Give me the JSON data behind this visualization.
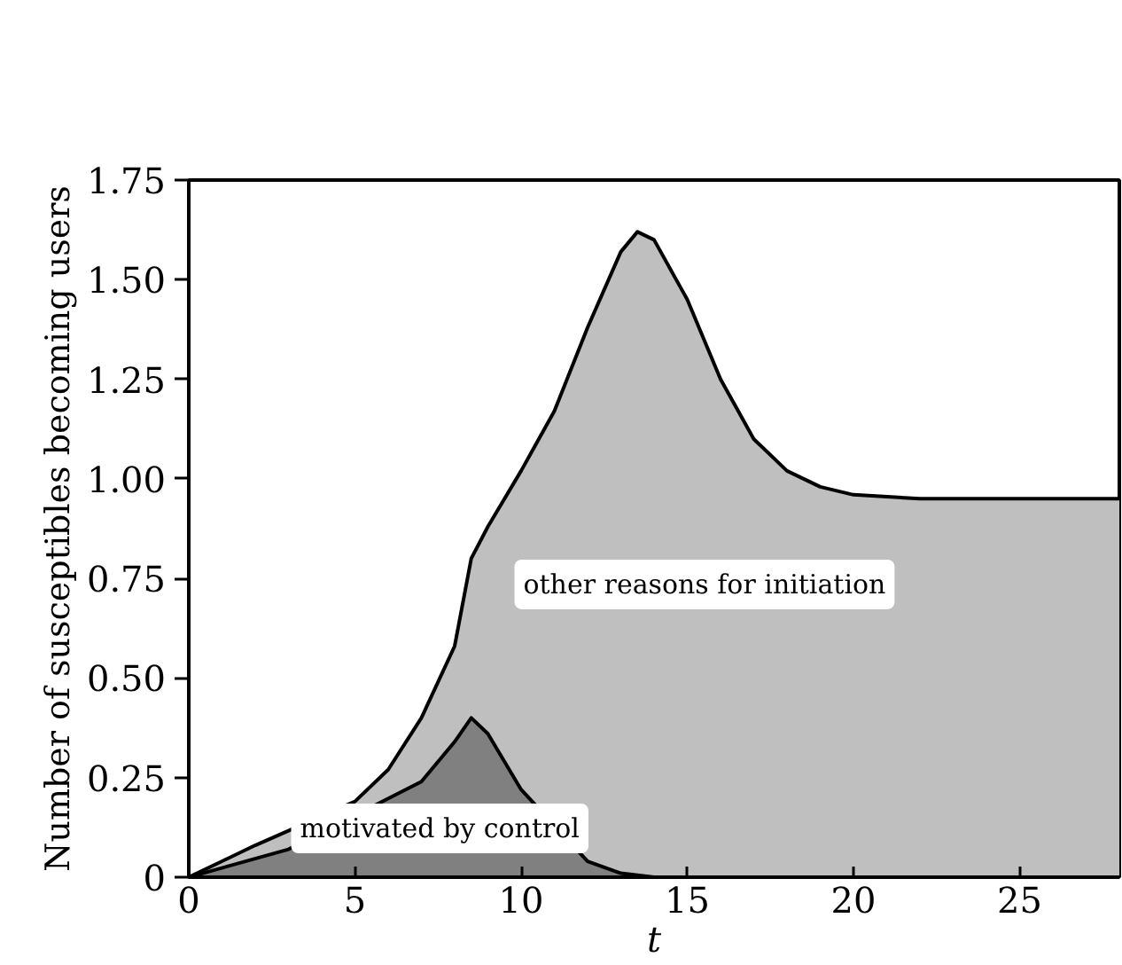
{
  "chart_data": {
    "type": "area",
    "xlabel": "t",
    "ylabel": "Number of susceptibles becoming users",
    "xlim": [
      0,
      28
    ],
    "ylim": [
      0,
      1.75
    ],
    "xticks": [
      0,
      5,
      10,
      15,
      20,
      25
    ],
    "yticks": [
      0,
      {
        "value": 0.25,
        "label": "0.25"
      },
      {
        "value": 0.5,
        "label": "0.50"
      },
      {
        "value": 0.75,
        "label": "0.75"
      },
      {
        "value": 1,
        "label": "1.00"
      },
      {
        "value": 1.25,
        "label": "1.25"
      },
      {
        "value": 1.5,
        "label": "1.50"
      },
      {
        "value": 1.75,
        "label": "1.75"
      }
    ],
    "grid": false,
    "series": [
      {
        "name": "other reasons for initiation",
        "color": "#bfbfbf",
        "x": [
          0,
          2,
          5,
          6,
          7,
          8,
          8.5,
          9,
          10,
          11,
          12,
          13,
          13.5,
          14,
          15,
          16,
          17,
          18,
          19,
          20,
          22,
          25,
          28
        ],
        "values": [
          0,
          0.08,
          0.19,
          0.27,
          0.4,
          0.58,
          0.8,
          0.88,
          1.02,
          1.17,
          1.38,
          1.57,
          1.62,
          1.6,
          1.45,
          1.25,
          1.1,
          1.02,
          0.98,
          0.96,
          0.95,
          0.95,
          0.95
        ]
      },
      {
        "name": "motivated by control",
        "color": "#808080",
        "x": [
          0,
          3,
          7,
          8,
          8.5,
          9,
          10,
          12,
          13,
          14,
          28
        ],
        "values": [
          0,
          0.07,
          0.24,
          0.34,
          0.4,
          0.36,
          0.22,
          0.04,
          0.01,
          0,
          0
        ]
      }
    ]
  }
}
